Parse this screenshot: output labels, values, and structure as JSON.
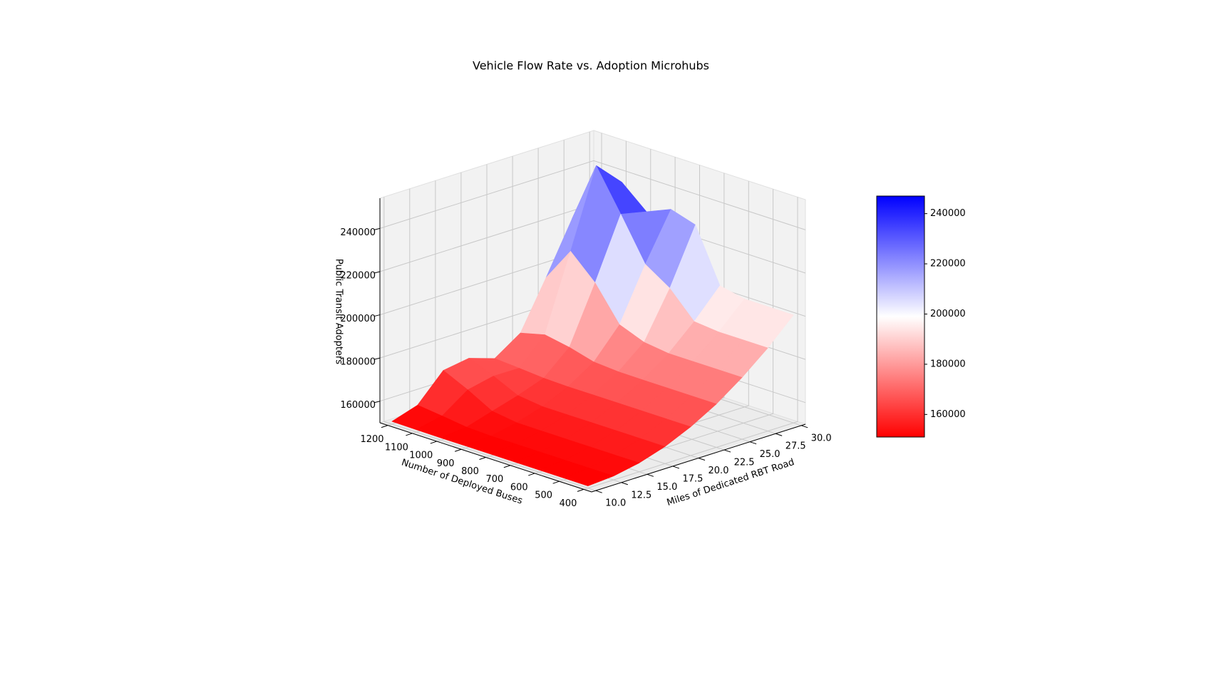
{
  "chart_data": {
    "type": "surface",
    "title": "Vehicle Flow Rate vs. Adoption Microhubs",
    "xlabel": "Miles of Dedicated RBT Road",
    "ylabel": "Number of Deployed Buses",
    "zlabel": "Public Transit Adopters",
    "x": [
      10,
      12.5,
      15,
      17.5,
      20,
      22.5,
      25,
      27.5,
      30
    ],
    "y": [
      400,
      500,
      600,
      700,
      800,
      900,
      1000,
      1100,
      1200
    ],
    "z": [
      [
        151000,
        151800,
        154100,
        157900,
        163300,
        170100,
        178600,
        188500,
        200000
      ],
      [
        151000,
        151800,
        154100,
        157900,
        163300,
        170100,
        178600,
        188500,
        200000
      ],
      [
        151000,
        151800,
        154100,
        157900,
        163300,
        170100,
        178600,
        188500,
        200000
      ],
      [
        151000,
        151800,
        154100,
        157900,
        163300,
        170100,
        178600,
        189600,
        202400
      ],
      [
        151000,
        151800,
        154100,
        157900,
        163300,
        170200,
        180100,
        201300,
        226900
      ],
      [
        151000,
        151800,
        154200,
        157900,
        163300,
        171000,
        184500,
        208700,
        230400
      ],
      [
        151000,
        152200,
        155800,
        159300,
        163600,
        174100,
        200200,
        228200,
        225600
      ],
      [
        151100,
        153700,
        162000,
        164600,
        164500,
        176200,
        211100,
        247000,
        235500
      ],
      [
        151200,
        155000,
        167300,
        169200,
        165300,
        173300,
        195200,
        218400,
        218200
      ]
    ],
    "xlim": [
      9.6,
      30.4
    ],
    "ylim": [
      368,
      1232
    ],
    "zlim": [
      150000,
      254000
    ],
    "xticks": [
      {
        "value": 10,
        "label": "10.0"
      },
      12.5,
      {
        "value": 15,
        "label": "15.0"
      },
      17.5,
      {
        "value": 20,
        "label": "20.0"
      },
      22.5,
      {
        "value": 25,
        "label": "25.0"
      },
      27.5,
      {
        "value": 30,
        "label": "30.0"
      }
    ],
    "yticks": [
      400,
      500,
      600,
      700,
      800,
      900,
      1000,
      1100,
      1200
    ],
    "zticks": [
      160000,
      180000,
      200000,
      220000,
      240000
    ],
    "colormap": "bwr_r",
    "clim": [
      151000,
      247000
    ],
    "colorbar_ticks": [
      160000,
      180000,
      200000,
      220000,
      240000
    ],
    "grid": true
  }
}
